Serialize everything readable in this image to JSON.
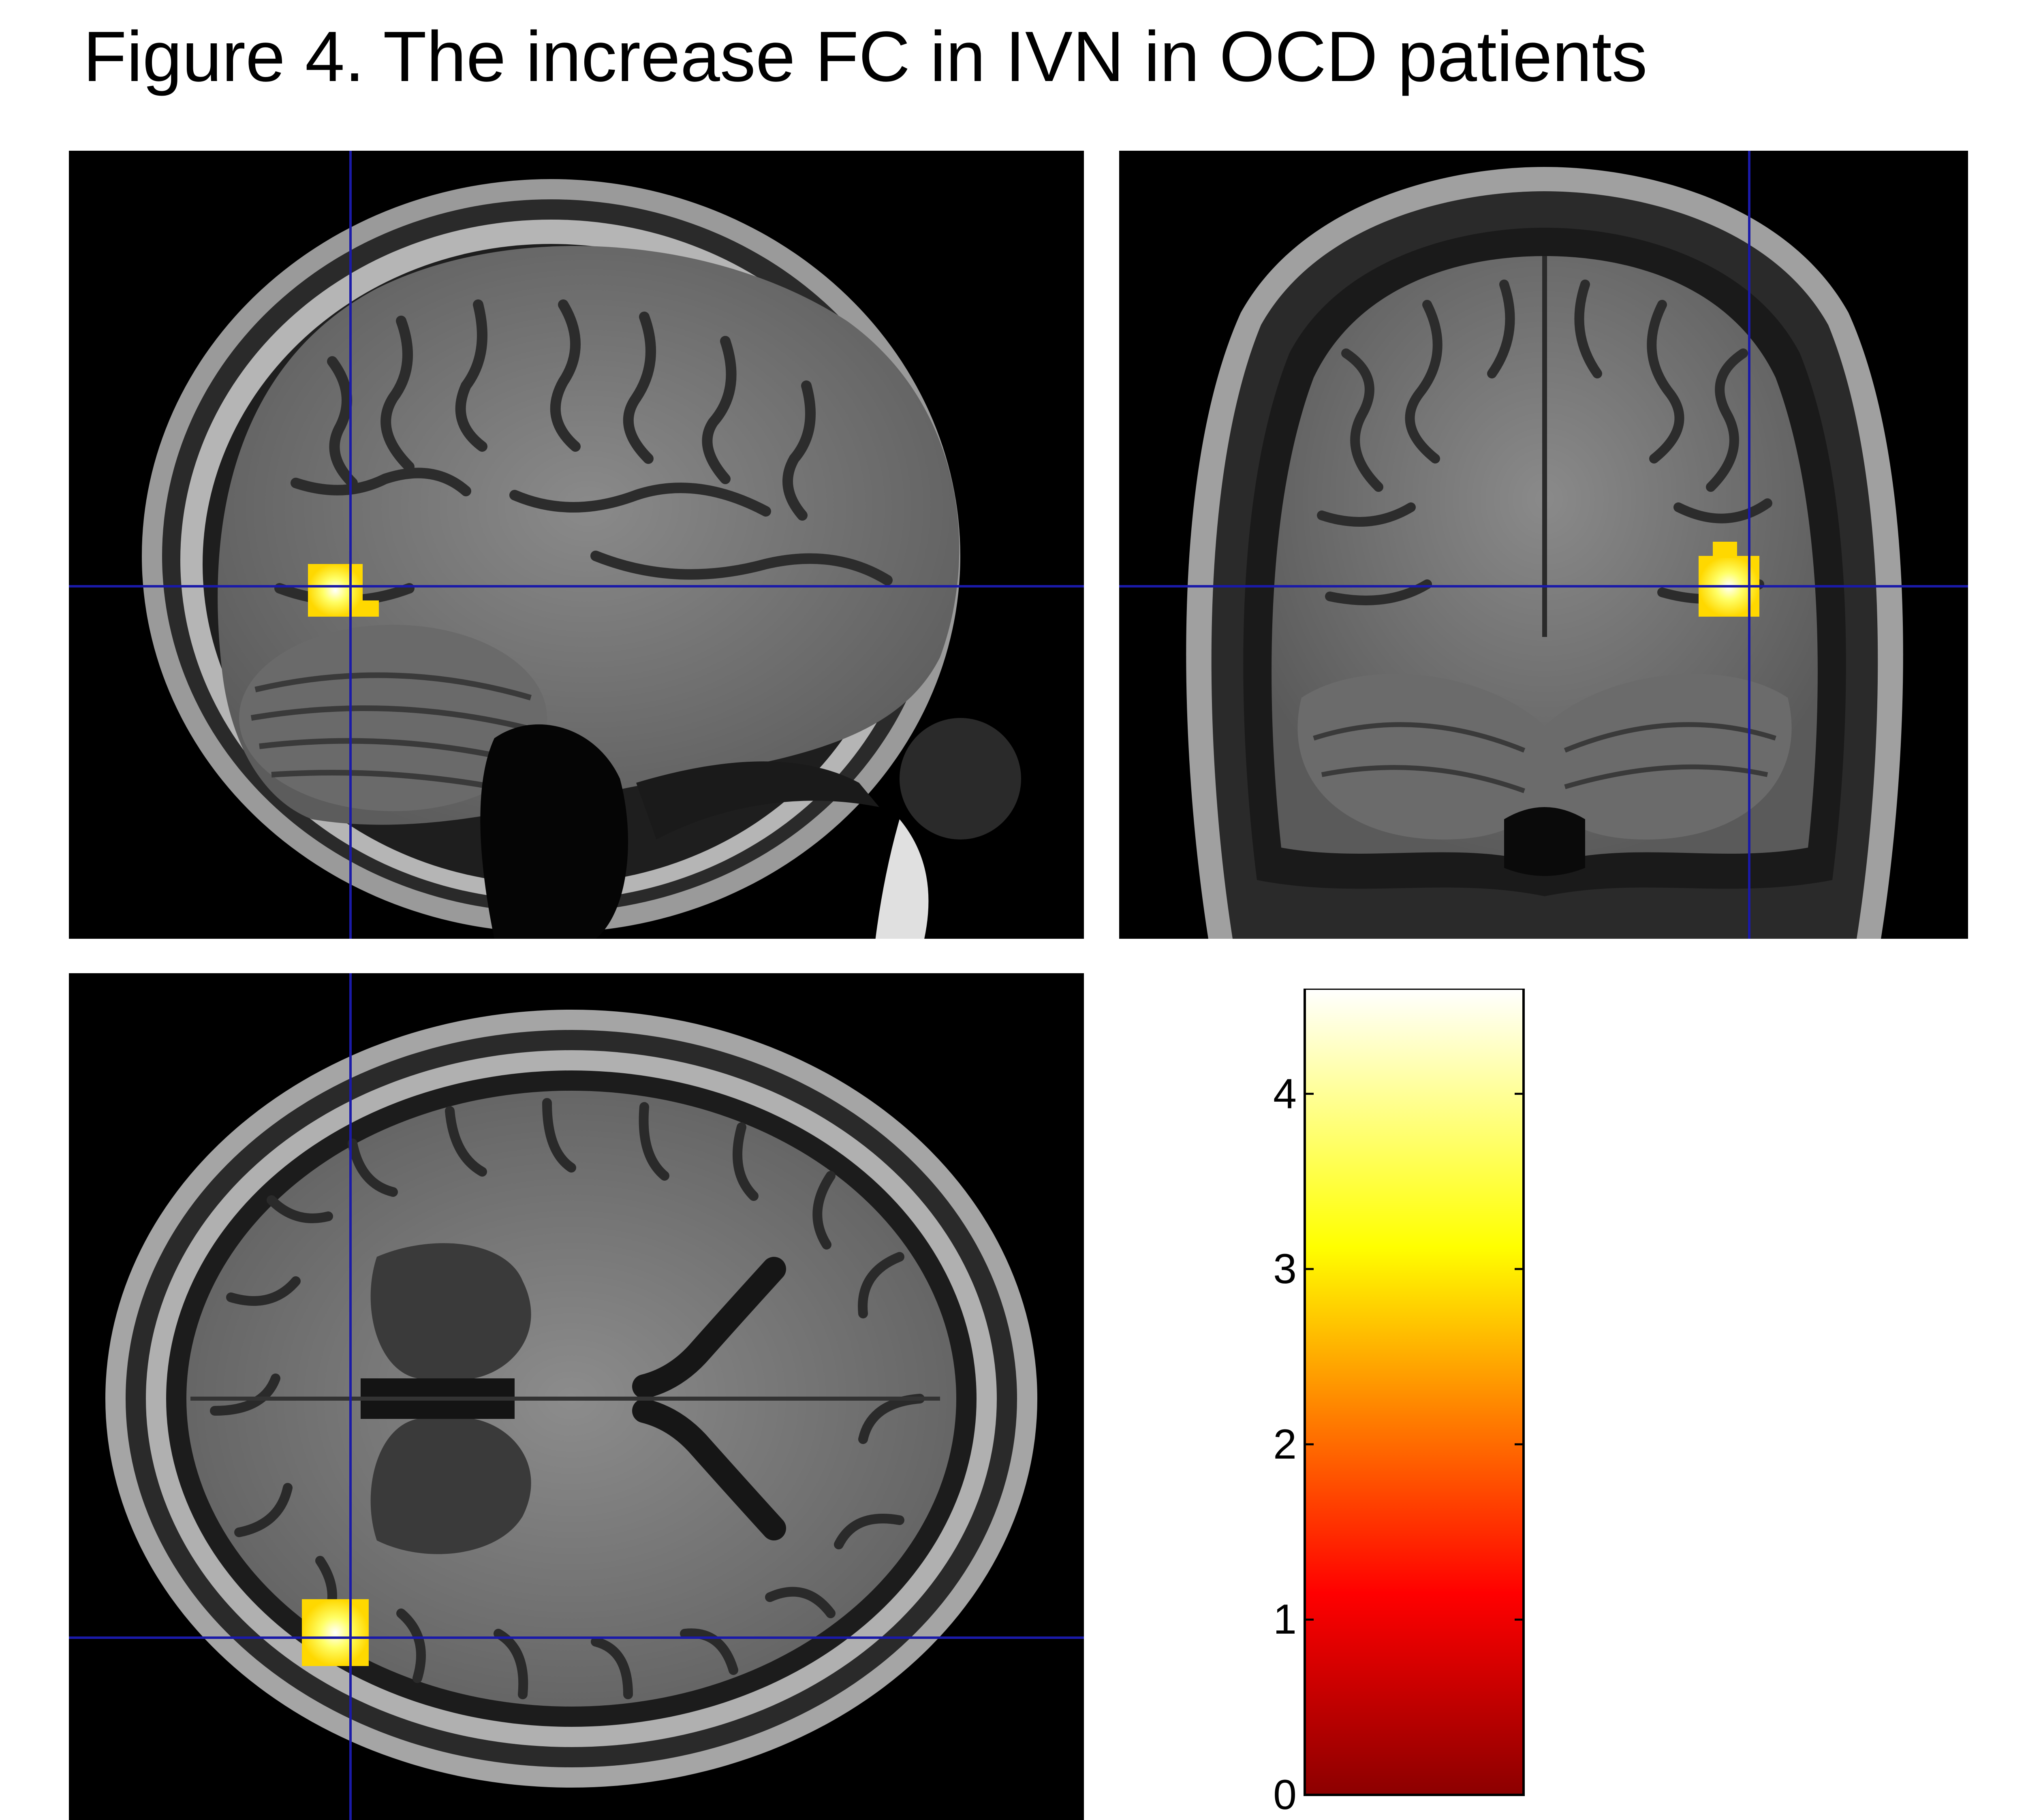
{
  "figure": {
    "title": "Figure 4. The increase FC in IVN in OCD patients"
  },
  "panels": [
    {
      "id": "sagittal",
      "view": "sagittal"
    },
    {
      "id": "coronal",
      "view": "coronal"
    },
    {
      "id": "axial",
      "view": "axial"
    }
  ],
  "crosshair": {
    "color": "#1a1aa8"
  },
  "activation": {
    "color": "#ffee00",
    "peak_color": "#ffffff"
  },
  "colorbar": {
    "min": 0,
    "max": 4.6,
    "ticks": [
      "0",
      "1",
      "2",
      "3",
      "4"
    ],
    "colormap": [
      "#8c0000",
      "#ff0000",
      "#ff7f00",
      "#ffff00",
      "#ffffff"
    ]
  }
}
